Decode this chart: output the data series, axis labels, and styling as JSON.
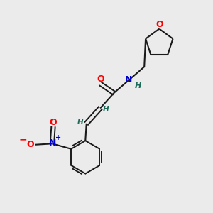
{
  "bg_color": "#ebebeb",
  "bond_color": "#1a6b5a",
  "atom_colors": {
    "O": "#ff0000",
    "N_amide": "#0000cc",
    "N_nitro": "#0000cc",
    "H": "#1a6b5a"
  },
  "lw": 1.5
}
